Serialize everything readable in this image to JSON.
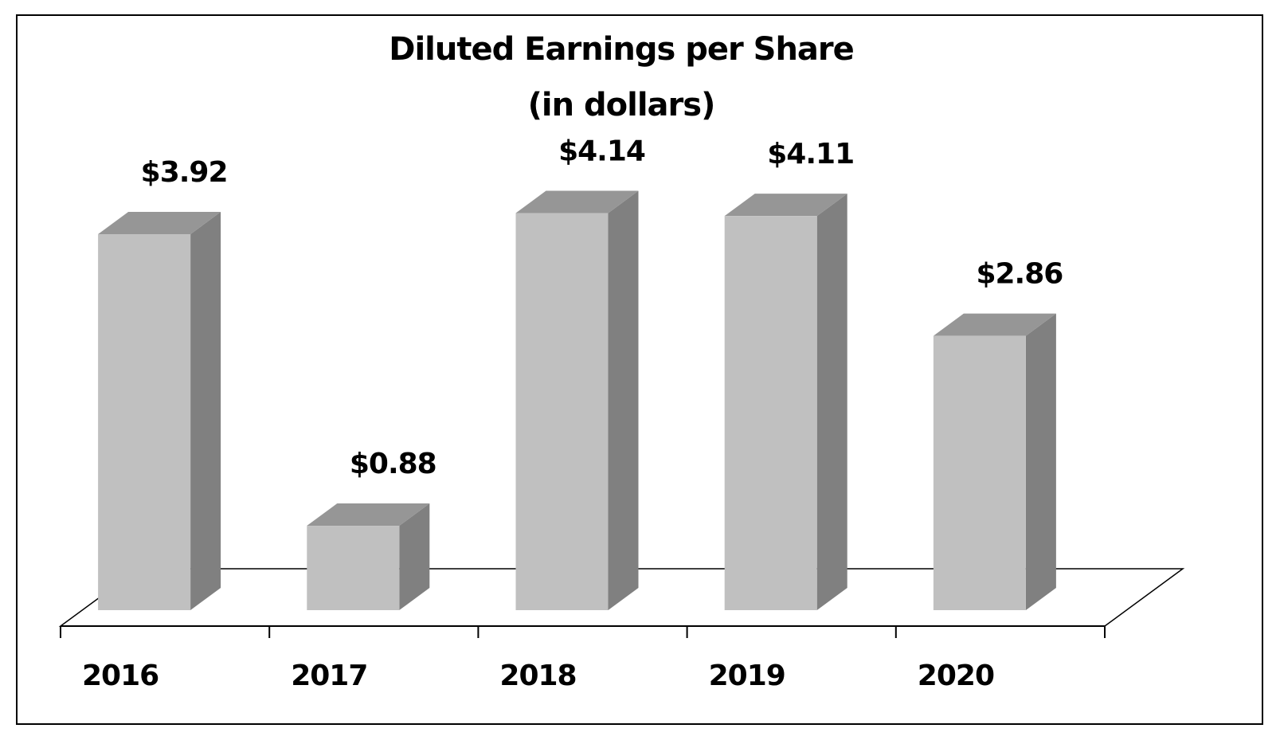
{
  "chart_data": {
    "type": "bar",
    "title": "Diluted Earnings per Share",
    "subtitle": "(in dollars)",
    "categories": [
      "2016",
      "2017",
      "2018",
      "2019",
      "2020"
    ],
    "values": [
      3.92,
      0.88,
      4.14,
      4.11,
      2.86
    ],
    "data_labels": [
      "$3.92",
      "$0.88",
      "$4.14",
      "$4.11",
      "$2.86"
    ],
    "xlabel": "",
    "ylabel": "",
    "ylim": [
      0,
      4.5
    ],
    "grid": false,
    "legend": "none",
    "colors": {
      "bar_front": "#c0c0c0",
      "bar_side": "#808080",
      "bar_top": "#969696",
      "floor": "#ffffff",
      "text": "#000000"
    }
  }
}
